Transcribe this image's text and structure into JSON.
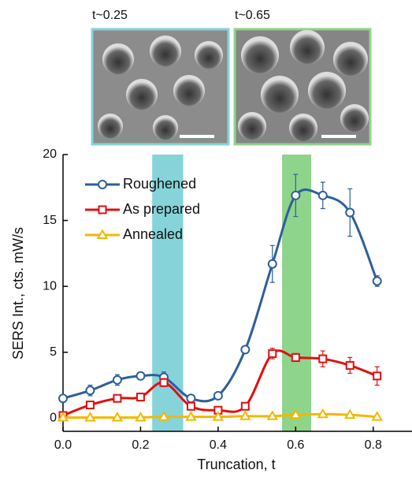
{
  "chart_data": {
    "type": "line",
    "image_captions": [
      "t~0.25",
      "t~0.65"
    ],
    "xlabel": "Truncation, t",
    "ylabel": "SERS Int., cts. mW/s",
    "x": [
      0.0,
      0.07,
      0.14,
      0.2,
      0.26,
      0.33,
      0.4,
      0.47,
      0.54,
      0.6,
      0.67,
      0.74,
      0.81
    ],
    "series": [
      {
        "name": "Roughened",
        "color": "#2e5f9a",
        "marker": "circle",
        "values": [
          1.5,
          2.1,
          2.9,
          3.2,
          3.1,
          1.5,
          1.7,
          5.2,
          11.7,
          16.9,
          16.9,
          15.6,
          10.4
        ],
        "errors": [
          0.2,
          0.4,
          0.4,
          0.2,
          0.4,
          0.2,
          0.2,
          0.2,
          1.4,
          1.6,
          1.0,
          1.8,
          0.4
        ]
      },
      {
        "name": "As prepared",
        "color": "#e01010",
        "marker": "square",
        "values": [
          0.2,
          1.0,
          1.5,
          1.6,
          2.7,
          0.9,
          0.6,
          0.9,
          4.9,
          4.6,
          4.5,
          4.0,
          3.2
        ],
        "errors": [
          0.2,
          0.2,
          0.2,
          0.3,
          0.3,
          0.2,
          0.2,
          0.2,
          0.4,
          0.3,
          0.6,
          0.6,
          0.7
        ]
      },
      {
        "name": "Annealed",
        "color": "#f2b800",
        "marker": "triangle",
        "values": [
          0.05,
          0.05,
          0.05,
          0.05,
          0.1,
          0.1,
          0.1,
          0.15,
          0.15,
          0.25,
          0.3,
          0.25,
          0.1
        ],
        "errors": [
          0.05,
          0.05,
          0.05,
          0.05,
          0.05,
          0.05,
          0.05,
          0.05,
          0.05,
          0.05,
          0.05,
          0.05,
          0.05
        ]
      }
    ],
    "highlights": [
      {
        "range": [
          0.23,
          0.31
        ],
        "color": "#86d4da"
      },
      {
        "range": [
          0.565,
          0.64
        ],
        "color": "#8ed48a"
      }
    ],
    "xlim": [
      0,
      0.9
    ],
    "xticks": [
      {
        "value": 0,
        "label": "0.0"
      },
      0.2,
      0.4,
      0.6,
      0.8
    ],
    "ylim": [
      -1,
      20
    ],
    "yticks": [
      0,
      5,
      10,
      15,
      20
    ],
    "legend": "upper left"
  }
}
